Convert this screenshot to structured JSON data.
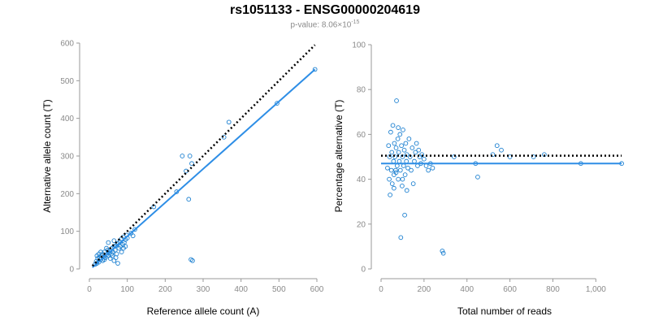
{
  "header": {
    "title": "rs1051133 - ENSG00000204619",
    "pvalue_prefix": "p-value: 8.06×10",
    "pvalue_exponent": "-15"
  },
  "colors": {
    "points": "#1a7fd0",
    "fit_line": "#2e8ee6",
    "reference_line": "#000000"
  },
  "chart_data": [
    {
      "type": "scatter",
      "id": "left",
      "xlabel": "Reference allele count (A)",
      "ylabel": "Alternative allele count (T)",
      "xlim": [
        0,
        600
      ],
      "ylim": [
        0,
        600
      ],
      "xticks": [
        0,
        100,
        200,
        300,
        400,
        500,
        600
      ],
      "xtick_labels": [
        "0",
        "100",
        "200",
        "300",
        "400",
        "500",
        "600"
      ],
      "yticks": [
        0,
        100,
        200,
        300,
        400,
        500,
        600
      ],
      "ytick_labels": [
        "0",
        "100",
        "200",
        "300",
        "400",
        "500",
        "600"
      ],
      "grid": false,
      "fit_line": {
        "x": [
          8,
          595
        ],
        "y": [
          4,
          530
        ]
      },
      "reference_line": {
        "x": [
          8,
          595
        ],
        "y": [
          8,
          595
        ]
      },
      "points": [
        [
          15,
          12
        ],
        [
          18,
          20
        ],
        [
          20,
          15
        ],
        [
          22,
          28
        ],
        [
          25,
          18
        ],
        [
          27,
          30
        ],
        [
          30,
          25
        ],
        [
          32,
          35
        ],
        [
          35,
          22
        ],
        [
          35,
          40
        ],
        [
          38,
          32
        ],
        [
          40,
          45
        ],
        [
          42,
          30
        ],
        [
          45,
          38
        ],
        [
          48,
          50
        ],
        [
          50,
          35
        ],
        [
          52,
          42
        ],
        [
          55,
          48
        ],
        [
          58,
          40
        ],
        [
          60,
          55
        ],
        [
          62,
          45
        ],
        [
          65,
          60
        ],
        [
          68,
          50
        ],
        [
          70,
          62
        ],
        [
          72,
          40
        ],
        [
          75,
          68
        ],
        [
          78,
          55
        ],
        [
          80,
          72
        ],
        [
          82,
          60
        ],
        [
          85,
          80
        ],
        [
          88,
          65
        ],
        [
          90,
          85
        ],
        [
          92,
          70
        ],
        [
          95,
          78
        ],
        [
          98,
          90
        ],
        [
          100,
          82
        ],
        [
          60,
          35
        ],
        [
          70,
          30
        ],
        [
          75,
          15
        ],
        [
          65,
          22
        ],
        [
          55,
          28
        ],
        [
          45,
          55
        ],
        [
          40,
          25
        ],
        [
          30,
          45
        ],
        [
          25,
          40
        ],
        [
          20,
          35
        ],
        [
          50,
          70
        ],
        [
          65,
          75
        ],
        [
          85,
          45
        ],
        [
          90,
          55
        ],
        [
          110,
          95
        ],
        [
          120,
          105
        ],
        [
          115,
          88
        ],
        [
          95,
          60
        ],
        [
          170,
          165
        ],
        [
          230,
          205
        ],
        [
          245,
          300
        ],
        [
          255,
          260
        ],
        [
          262,
          185
        ],
        [
          265,
          300
        ],
        [
          270,
          280
        ],
        [
          268,
          25
        ],
        [
          272,
          22
        ],
        [
          355,
          350
        ],
        [
          368,
          390
        ],
        [
          495,
          440
        ],
        [
          595,
          530
        ]
      ]
    },
    {
      "type": "scatter",
      "id": "right",
      "xlabel": "Total number of reads",
      "ylabel": "Percentage alternative (T)",
      "xlim": [
        0,
        1150
      ],
      "ylim": [
        0,
        100
      ],
      "xticks": [
        0,
        200,
        400,
        600,
        800,
        1000
      ],
      "xtick_labels": [
        "0",
        "200",
        "400",
        "600",
        "800",
        "1,000"
      ],
      "yticks": [
        0,
        20,
        40,
        60,
        80,
        100
      ],
      "ytick_labels": [
        "0",
        "20",
        "40",
        "60",
        "80",
        "100"
      ],
      "grid": false,
      "fit_line": {
        "x": [
          0,
          1120
        ],
        "y": [
          47,
          47
        ]
      },
      "reference_line": {
        "x": [
          0,
          1120
        ],
        "y": [
          50.5,
          50.5
        ]
      },
      "points": [
        [
          30,
          45
        ],
        [
          35,
          55
        ],
        [
          38,
          40
        ],
        [
          40,
          50
        ],
        [
          42,
          33
        ],
        [
          45,
          61
        ],
        [
          48,
          44
        ],
        [
          50,
          52
        ],
        [
          52,
          38
        ],
        [
          55,
          64
        ],
        [
          58,
          48
        ],
        [
          60,
          42
        ],
        [
          62,
          56
        ],
        [
          65,
          50
        ],
        [
          68,
          44
        ],
        [
          70,
          54
        ],
        [
          72,
          75
        ],
        [
          75,
          46
        ],
        [
          78,
          58
        ],
        [
          80,
          40
        ],
        [
          82,
          52
        ],
        [
          85,
          48
        ],
        [
          88,
          60
        ],
        [
          90,
          44
        ],
        [
          92,
          14
        ],
        [
          95,
          55
        ],
        [
          98,
          37
        ],
        [
          100,
          50
        ],
        [
          102,
          62
        ],
        [
          105,
          46
        ],
        [
          108,
          53
        ],
        [
          110,
          24
        ],
        [
          112,
          42
        ],
        [
          115,
          56
        ],
        [
          118,
          48
        ],
        [
          120,
          51
        ],
        [
          125,
          45
        ],
        [
          130,
          58
        ],
        [
          135,
          50
        ],
        [
          140,
          44
        ],
        [
          145,
          54
        ],
        [
          150,
          38
        ],
        [
          155,
          48
        ],
        [
          160,
          52
        ],
        [
          165,
          56
        ],
        [
          170,
          46
        ],
        [
          175,
          53
        ],
        [
          180,
          50
        ],
        [
          185,
          47
        ],
        [
          190,
          51
        ],
        [
          200,
          49
        ],
        [
          210,
          46
        ],
        [
          220,
          44
        ],
        [
          230,
          47
        ],
        [
          240,
          45
        ],
        [
          60,
          36
        ],
        [
          70,
          43
        ],
        [
          80,
          63
        ],
        [
          100,
          40
        ],
        [
          120,
          35
        ],
        [
          285,
          8
        ],
        [
          290,
          7
        ],
        [
          340,
          50
        ],
        [
          440,
          47
        ],
        [
          450,
          41
        ],
        [
          520,
          51
        ],
        [
          540,
          55
        ],
        [
          560,
          53
        ],
        [
          600,
          50
        ],
        [
          710,
          50
        ],
        [
          760,
          51
        ],
        [
          930,
          47
        ],
        [
          1120,
          47
        ]
      ]
    }
  ]
}
